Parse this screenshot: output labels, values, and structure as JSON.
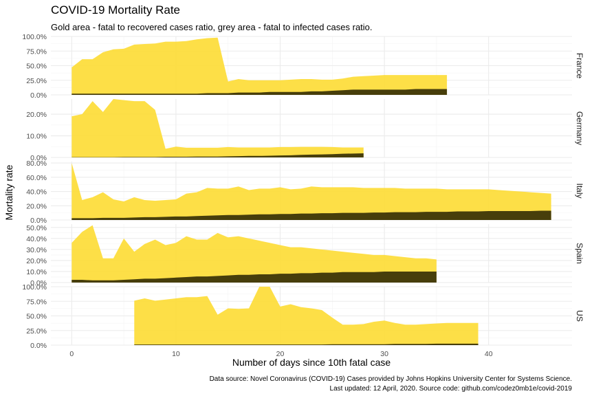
{
  "chart_data": {
    "type": "area",
    "title": "COVID-19 Mortality Rate",
    "subtitle": "Gold area - fatal to recovered cases ratio, grey area - fatal to infected cases ratio.",
    "xlabel": "Number of days since 10th fatal case",
    "ylabel": "Mortality rate",
    "caption_line1": "Data source: Novel Coronavirus (COVID-19) Cases provided by Johns Hopkins University Center for Systems Science.",
    "caption_line2": "Last updated: 12 April, 2020. Source code: github.com/codez0mb1e/covid-2019",
    "x_ticks": [
      0,
      10,
      20,
      30,
      40
    ],
    "xlim": [
      -2,
      48
    ],
    "colors": {
      "recovered_area": "#FDDD3D",
      "infected_area": "#3D3508",
      "grid": "#EBEBEB"
    },
    "series_names": [
      "fatal to recovered cases ratio",
      "fatal to infected cases ratio"
    ],
    "facets": [
      {
        "label": "France",
        "ylim": [
          0,
          1.0
        ],
        "y_ticks": [
          0,
          0.25,
          0.5,
          0.75,
          1.0
        ],
        "y_tick_labels": [
          "0.0%",
          "25.0%",
          "50.0%",
          "75.0%",
          "100.0%"
        ],
        "x": [
          0,
          1,
          2,
          3,
          4,
          5,
          6,
          7,
          8,
          9,
          10,
          11,
          12,
          13,
          14,
          15,
          16,
          17,
          18,
          19,
          20,
          21,
          22,
          23,
          24,
          25,
          26,
          27,
          28,
          29,
          30,
          31,
          32,
          33,
          34,
          35,
          36
        ],
        "recovered": [
          0.47,
          0.61,
          0.61,
          0.73,
          0.78,
          0.79,
          0.86,
          0.87,
          0.88,
          0.91,
          0.91,
          0.92,
          0.95,
          0.97,
          0.98,
          0.23,
          0.27,
          0.25,
          0.25,
          0.25,
          0.25,
          0.26,
          0.27,
          0.27,
          0.26,
          0.26,
          0.28,
          0.31,
          0.32,
          0.33,
          0.34,
          0.34,
          0.34,
          0.34,
          0.34,
          0.34,
          0.34
        ],
        "infected": [
          0.02,
          0.02,
          0.02,
          0.02,
          0.02,
          0.02,
          0.02,
          0.02,
          0.02,
          0.02,
          0.02,
          0.02,
          0.02,
          0.03,
          0.03,
          0.03,
          0.04,
          0.04,
          0.04,
          0.05,
          0.05,
          0.05,
          0.05,
          0.06,
          0.06,
          0.07,
          0.08,
          0.09,
          0.09,
          0.09,
          0.09,
          0.09,
          0.09,
          0.1,
          0.1,
          0.1,
          0.1
        ]
      },
      {
        "label": "Germany",
        "ylim": [
          0,
          0.27
        ],
        "y_ticks": [
          0,
          0.1,
          0.2
        ],
        "y_tick_labels": [
          "0.0%",
          "10.0%",
          "20.0%"
        ],
        "x": [
          0,
          1,
          2,
          3,
          4,
          5,
          6,
          7,
          8,
          9,
          10,
          11,
          12,
          13,
          14,
          15,
          16,
          17,
          18,
          19,
          20,
          21,
          22,
          23,
          24,
          25,
          26,
          27,
          28
        ],
        "recovered": [
          0.19,
          0.2,
          0.26,
          0.21,
          0.27,
          0.265,
          0.26,
          0.26,
          0.22,
          0.04,
          0.05,
          0.045,
          0.045,
          0.045,
          0.045,
          0.048,
          0.046,
          0.046,
          0.046,
          0.046,
          0.048,
          0.048,
          0.049,
          0.049,
          0.049,
          0.048,
          0.046,
          0.046,
          0.046
        ],
        "infected": [
          0.001,
          0.001,
          0.001,
          0.001,
          0.001,
          0.002,
          0.002,
          0.002,
          0.002,
          0.003,
          0.003,
          0.003,
          0.004,
          0.004,
          0.004,
          0.005,
          0.006,
          0.007,
          0.007,
          0.008,
          0.009,
          0.01,
          0.012,
          0.013,
          0.014,
          0.015,
          0.017,
          0.018,
          0.019
        ]
      },
      {
        "label": "Italy",
        "ylim": [
          0,
          0.82
        ],
        "y_ticks": [
          0,
          0.2,
          0.4,
          0.6,
          0.8
        ],
        "y_tick_labels": [
          "0.0%",
          "20.0%",
          "40.0%",
          "60.0%",
          "80.0%"
        ],
        "x": [
          0,
          1,
          2,
          3,
          4,
          5,
          6,
          7,
          8,
          9,
          10,
          11,
          12,
          13,
          14,
          15,
          16,
          17,
          18,
          19,
          20,
          21,
          22,
          23,
          24,
          25,
          26,
          27,
          28,
          29,
          30,
          31,
          32,
          33,
          34,
          35,
          36,
          37,
          38,
          39,
          40,
          41,
          42,
          43,
          44,
          45,
          46
        ],
        "recovered": [
          0.8,
          0.28,
          0.32,
          0.39,
          0.29,
          0.26,
          0.32,
          0.28,
          0.27,
          0.28,
          0.29,
          0.37,
          0.39,
          0.45,
          0.44,
          0.44,
          0.47,
          0.42,
          0.44,
          0.44,
          0.46,
          0.43,
          0.44,
          0.47,
          0.46,
          0.46,
          0.46,
          0.46,
          0.45,
          0.45,
          0.45,
          0.45,
          0.44,
          0.44,
          0.44,
          0.44,
          0.43,
          0.43,
          0.43,
          0.43,
          0.43,
          0.42,
          0.41,
          0.4,
          0.39,
          0.38,
          0.37
        ],
        "infected": [
          0.025,
          0.025,
          0.025,
          0.03,
          0.03,
          0.03,
          0.035,
          0.04,
          0.04,
          0.045,
          0.05,
          0.05,
          0.055,
          0.06,
          0.065,
          0.07,
          0.07,
          0.075,
          0.08,
          0.08,
          0.085,
          0.085,
          0.09,
          0.09,
          0.095,
          0.095,
          0.1,
          0.1,
          0.1,
          0.105,
          0.105,
          0.11,
          0.11,
          0.11,
          0.115,
          0.115,
          0.115,
          0.12,
          0.12,
          0.12,
          0.125,
          0.125,
          0.125,
          0.125,
          0.125,
          0.13,
          0.13
        ]
      },
      {
        "label": "Spain",
        "ylim": [
          0,
          0.53
        ],
        "y_ticks": [
          0,
          0.1,
          0.2,
          0.3,
          0.4,
          0.5
        ],
        "y_tick_labels": [
          "0.0%",
          "10.0%",
          "20.0%",
          "30.0%",
          "40.0%",
          "50.0%"
        ],
        "x": [
          0,
          1,
          2,
          3,
          4,
          5,
          6,
          7,
          8,
          9,
          10,
          11,
          12,
          13,
          14,
          15,
          16,
          17,
          18,
          19,
          20,
          21,
          22,
          23,
          24,
          25,
          26,
          27,
          28,
          29,
          30,
          31,
          32,
          33,
          34,
          35
        ],
        "recovered": [
          0.36,
          0.46,
          0.52,
          0.22,
          0.22,
          0.4,
          0.28,
          0.35,
          0.39,
          0.34,
          0.36,
          0.42,
          0.39,
          0.39,
          0.45,
          0.41,
          0.42,
          0.4,
          0.38,
          0.36,
          0.34,
          0.32,
          0.32,
          0.31,
          0.3,
          0.29,
          0.28,
          0.27,
          0.26,
          0.25,
          0.25,
          0.24,
          0.23,
          0.22,
          0.22,
          0.21
        ],
        "infected": [
          0.025,
          0.025,
          0.02,
          0.02,
          0.02,
          0.025,
          0.03,
          0.035,
          0.035,
          0.04,
          0.045,
          0.05,
          0.055,
          0.055,
          0.06,
          0.065,
          0.07,
          0.07,
          0.075,
          0.075,
          0.08,
          0.08,
          0.085,
          0.085,
          0.09,
          0.09,
          0.095,
          0.095,
          0.095,
          0.095,
          0.1,
          0.1,
          0.1,
          0.1,
          0.1,
          0.1
        ]
      },
      {
        "label": "US",
        "ylim": [
          0,
          1.0
        ],
        "y_ticks": [
          0,
          0.25,
          0.5,
          0.75,
          1.0
        ],
        "y_tick_labels": [
          "0.0%",
          "25.0%",
          "50.0%",
          "75.0%",
          "100.0%"
        ],
        "x": [
          6,
          7,
          8,
          9,
          10,
          11,
          12,
          13,
          14,
          15,
          16,
          17,
          18,
          19,
          20,
          21,
          22,
          23,
          24,
          25,
          26,
          27,
          28,
          29,
          30,
          31,
          32,
          33,
          34,
          35,
          36,
          37,
          38,
          39
        ],
        "recovered": [
          0.76,
          0.8,
          0.76,
          0.78,
          0.8,
          0.82,
          0.82,
          0.84,
          0.52,
          0.63,
          0.62,
          0.63,
          1.0,
          1.0,
          0.66,
          0.7,
          0.65,
          0.63,
          0.6,
          0.47,
          0.35,
          0.35,
          0.36,
          0.4,
          0.42,
          0.38,
          0.35,
          0.35,
          0.36,
          0.37,
          0.38,
          0.38,
          0.38,
          0.38
        ],
        "infected": [
          0.01,
          0.01,
          0.01,
          0.01,
          0.01,
          0.01,
          0.01,
          0.01,
          0.01,
          0.01,
          0.01,
          0.01,
          0.01,
          0.01,
          0.01,
          0.01,
          0.01,
          0.01,
          0.01,
          0.015,
          0.015,
          0.015,
          0.015,
          0.015,
          0.015,
          0.02,
          0.02,
          0.02,
          0.02,
          0.025,
          0.025,
          0.025,
          0.025,
          0.025
        ]
      }
    ]
  }
}
